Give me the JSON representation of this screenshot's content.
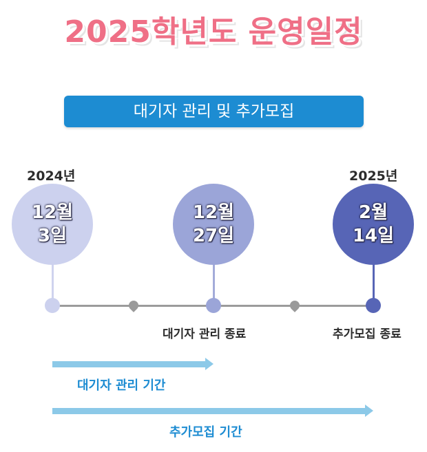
{
  "title": "2025학년도 운영일정",
  "banner": "대기자 관리 및 추가모집",
  "years": {
    "start": "2024년",
    "end": "2025년"
  },
  "dates": [
    {
      "month": "12월",
      "day": "3일",
      "color": "#ccd1ee",
      "stem": "#cfd3ee"
    },
    {
      "month": "12월",
      "day": "27일",
      "color": "#9ba5d8",
      "stem": "#a3abd9"
    },
    {
      "month": "2월",
      "day": "14일",
      "color": "#5765b6",
      "stem": "#5765b6"
    }
  ],
  "milestones": {
    "waitlist_end": "대기자 관리 종료",
    "additional_end": "추가모집 종료"
  },
  "periods": {
    "waitlist": "대기자 관리 기간",
    "additional": "추가모집 기간"
  },
  "colors": {
    "title": "#ef6f86",
    "banner": "#1d8cd2",
    "period_arrow": "#8cc9e8",
    "line": "#9b9b9b"
  }
}
